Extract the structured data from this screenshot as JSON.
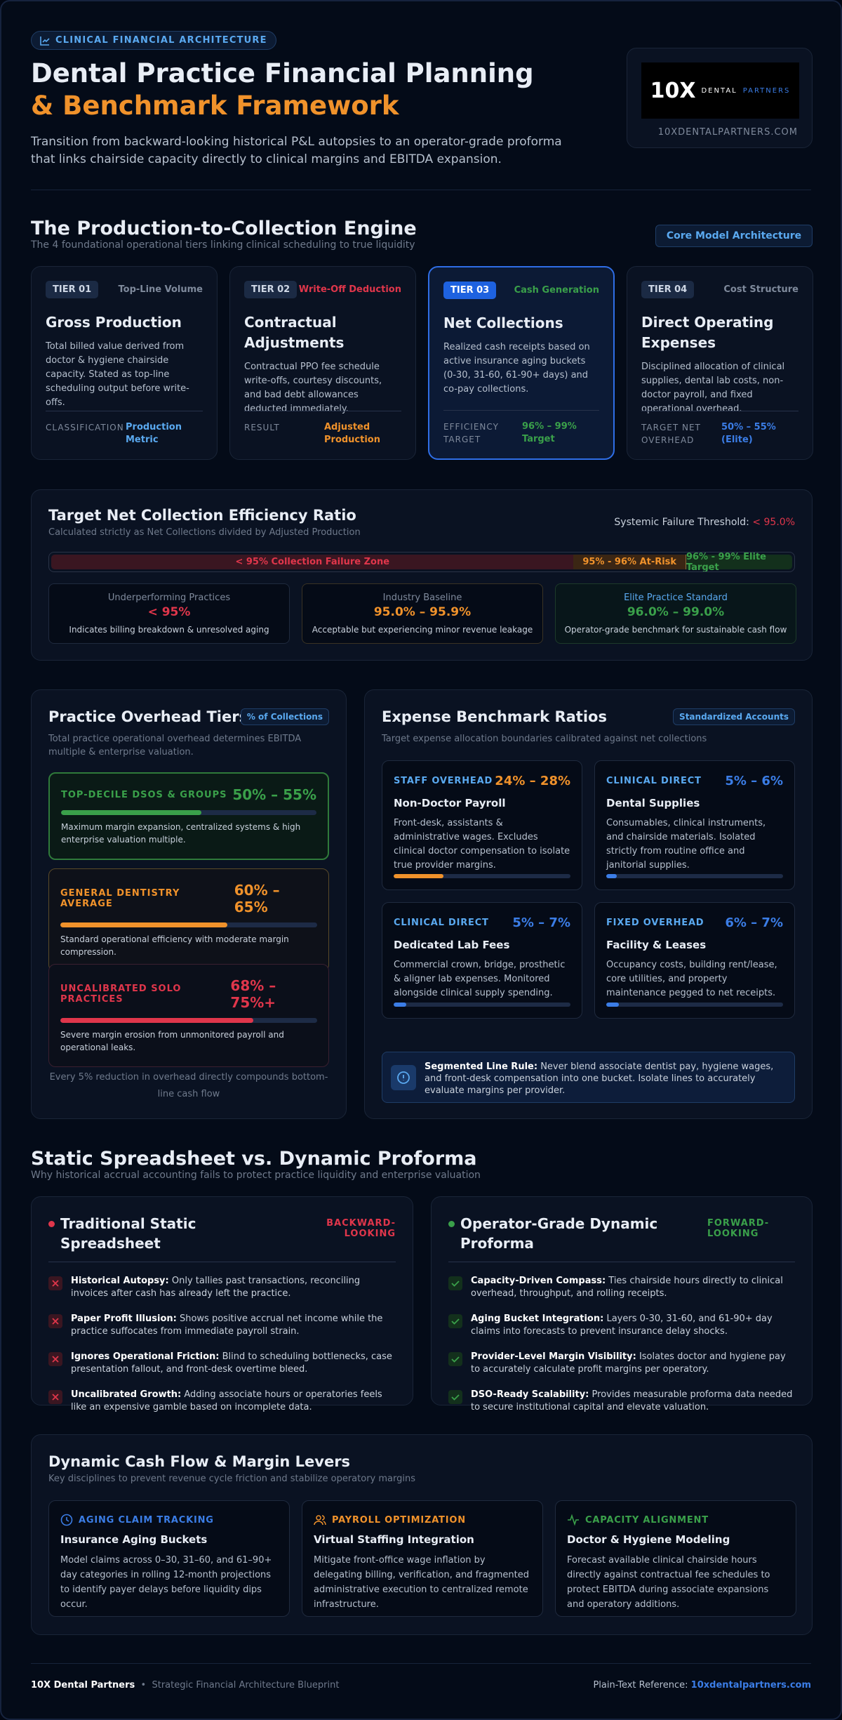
{
  "header": {
    "badge": "CLINICAL FINANCIAL ARCHITECTURE",
    "title_main": "Dental Practice Financial Planning",
    "title_accent": "& Benchmark Framework",
    "subtitle": "Transition from backward-looking historical P&L autopsies to an operator-grade proforma that links chairside capacity directly to clinical margins and EBITDA expansion.",
    "logo": {
      "mark": "10X",
      "name": "DENTAL",
      "name_accent": "PARTNERS",
      "url": "10XDENTALPARTNERS.COM"
    }
  },
  "engine": {
    "title": "The Production-to-Collection Engine",
    "subtitle": "The 4 foundational operational tiers linking clinical scheduling to true liquidity",
    "tag": "Core Model Architecture",
    "tiers": [
      {
        "tier": "TIER 01",
        "category": "Top-Line Volume",
        "name": "Gross Production",
        "desc": "Total billed value derived from doctor & hygiene chairside capacity. Stated as top-line scheduling output before write-offs.",
        "meta_label": "CLASSIFICATION",
        "meta_value": "Production Metric"
      },
      {
        "tier": "TIER 02",
        "category": "Write-Off Deduction",
        "name": "Contractual Adjustments",
        "desc": "Contractual PPO fee schedule write-offs, courtesy discounts, and bad debt allowances deducted immediately.",
        "meta_label": "RESULT",
        "meta_value": "Adjusted Production"
      },
      {
        "tier": "TIER 03",
        "category": "Cash Generation",
        "name": "Net Collections",
        "desc": "Realized cash receipts based on active insurance aging buckets (0-30, 31-60, 61-90+ days) and co-pay collections.",
        "meta_label": "EFFICIENCY TARGET",
        "meta_value": "96% – 99% Target"
      },
      {
        "tier": "TIER 04",
        "category": "Cost Structure",
        "name": "Direct Operating Expenses",
        "desc": "Disciplined allocation of clinical supplies, dental lab costs, non-doctor payroll, and fixed operational overhead.",
        "meta_label": "TARGET NET OVERHEAD",
        "meta_value": "50% – 55% (Elite)"
      }
    ]
  },
  "efficiency": {
    "title": "Target Net Collection Efficiency Ratio",
    "subtitle": "Calculated strictly as Net Collections divided by Adjusted Production",
    "threshold_label": "Systemic Failure Threshold:",
    "threshold_value": "< 95.0%",
    "zones": [
      "< 95% Collection Failure Zone",
      "95% - 96% At-Risk",
      "96% - 99% Elite Target"
    ],
    "cards": [
      {
        "label": "Underperforming Practices",
        "value": "< 95%",
        "note": "Indicates billing breakdown & unresolved aging"
      },
      {
        "label": "Industry Baseline",
        "value": "95.0% – 95.9%",
        "note": "Acceptable but experiencing minor revenue leakage"
      },
      {
        "label": "Elite Practice Standard",
        "value": "96.0% – 99.0%",
        "note": "Operator-grade benchmark for sustainable cash flow"
      }
    ]
  },
  "overhead": {
    "title": "Practice Overhead Tiers",
    "tag": "% of Collections",
    "subtitle": "Total practice operational overhead determines EBITDA multiple & enterprise valuation.",
    "tiers": [
      {
        "name": "TOP-DECILE DSOS & GROUPS",
        "range": "50% – 55%",
        "bar": 55,
        "note": "Maximum margin expansion, centralized systems & high enterprise valuation multiple."
      },
      {
        "name": "GENERAL DENTISTRY AVERAGE",
        "range": "60% – 65%",
        "bar": 65,
        "note": "Standard operational efficiency with moderate margin compression."
      },
      {
        "name": "UNCALIBRATED SOLO PRACTICES",
        "range": "68% – 75%+",
        "bar": 75,
        "note": "Severe margin erosion from unmonitored payroll and operational leaks."
      }
    ],
    "footnote": "Every 5% reduction in overhead directly compounds bottom-line cash flow"
  },
  "expenses": {
    "title": "Expense Benchmark Ratios",
    "tag": "Standardized Accounts",
    "subtitle": "Target expense allocation boundaries calibrated against net collections",
    "items": [
      {
        "category": "STAFF OVERHEAD",
        "range": "24% – 28%",
        "name": "Non-Doctor Payroll",
        "desc": "Front-desk, assistants & administrative wages. Excludes clinical doctor compensation to isolate true provider margins.",
        "bar": 28
      },
      {
        "category": "CLINICAL DIRECT",
        "range": "5% – 6%",
        "name": "Dental Supplies",
        "desc": "Consumables, clinical instruments, and chairside materials. Isolated strictly from routine office and janitorial supplies.",
        "bar": 6
      },
      {
        "category": "CLINICAL DIRECT",
        "range": "5% – 7%",
        "name": "Dedicated Lab Fees",
        "desc": "Commercial crown, bridge, prosthetic & aligner lab expenses. Monitored alongside clinical supply spending.",
        "bar": 7
      },
      {
        "category": "FIXED OVERHEAD",
        "range": "6% – 7%",
        "name": "Facility & Leases",
        "desc": "Occupancy costs, building rent/lease, core utilities, and property maintenance pegged to net receipts.",
        "bar": 7
      }
    ],
    "rule": {
      "lead": "Segmented Line Rule:",
      "text": "Never blend associate dentist pay, hygiene wages, and front-desk compensation into one bucket. Isolate lines to accurately evaluate margins per provider."
    }
  },
  "comparison": {
    "title": "Static Spreadsheet vs. Dynamic Proforma",
    "subtitle": "Why historical accrual accounting fails to protect practice liquidity and enterprise valuation",
    "static": {
      "title": "Traditional Static Spreadsheet",
      "tag": "BACKWARD-LOOKING",
      "items": [
        {
          "lead": "Historical Autopsy:",
          "text": "Only tallies past transactions, reconciling invoices after cash has already left the practice."
        },
        {
          "lead": "Paper Profit Illusion:",
          "text": "Shows positive accrual net income while the practice suffocates from immediate payroll strain."
        },
        {
          "lead": "Ignores Operational Friction:",
          "text": "Blind to scheduling bottlenecks, case presentation fallout, and front-desk overtime bleed."
        },
        {
          "lead": "Uncalibrated Growth:",
          "text": "Adding associate hours or operatories feels like an expensive gamble based on incomplete data."
        }
      ]
    },
    "dynamic": {
      "title": "Operator-Grade Dynamic Proforma",
      "tag": "FORWARD-LOOKING",
      "items": [
        {
          "lead": "Capacity-Driven Compass:",
          "text": "Ties chairside hours directly to clinical overhead, throughput, and rolling receipts."
        },
        {
          "lead": "Aging Bucket Integration:",
          "text": "Layers 0-30, 31-60, and 61-90+ day claims into forecasts to prevent insurance delay shocks."
        },
        {
          "lead": "Provider-Level Margin Visibility:",
          "text": "Isolates doctor and hygiene pay to accurately calculate profit margins per operatory."
        },
        {
          "lead": "DSO-Ready Scalability:",
          "text": "Provides measurable proforma data needed to secure institutional capital and elevate valuation."
        }
      ]
    }
  },
  "levers": {
    "title": "Dynamic Cash Flow & Margin Levers",
    "subtitle": "Key disciplines to prevent revenue cycle friction and stabilize operatory margins",
    "items": [
      {
        "category": "AGING CLAIM TRACKING",
        "name": "Insurance Aging Buckets",
        "desc": "Model claims across 0–30, 31–60, and 61–90+ day categories in rolling 12-month projections to identify payer delays before liquidity dips occur."
      },
      {
        "category": "PAYROLL OPTIMIZATION",
        "name": "Virtual Staffing Integration",
        "desc": "Mitigate front-office wage inflation by delegating billing, verification, and fragmented administrative execution to centralized remote infrastructure."
      },
      {
        "category": "CAPACITY ALIGNMENT",
        "name": "Doctor & Hygiene Modeling",
        "desc": "Forecast available clinical chairside hours directly against contractual fee schedules to protect EBITDA during associate expansions and operatory additions."
      }
    ]
  },
  "footer": {
    "brand": "10X Dental Partners",
    "tagline": "Strategic Financial Architecture Blueprint",
    "ref_label": "Plain-Text Reference:",
    "ref_link": "10xdentalpartners.com"
  }
}
